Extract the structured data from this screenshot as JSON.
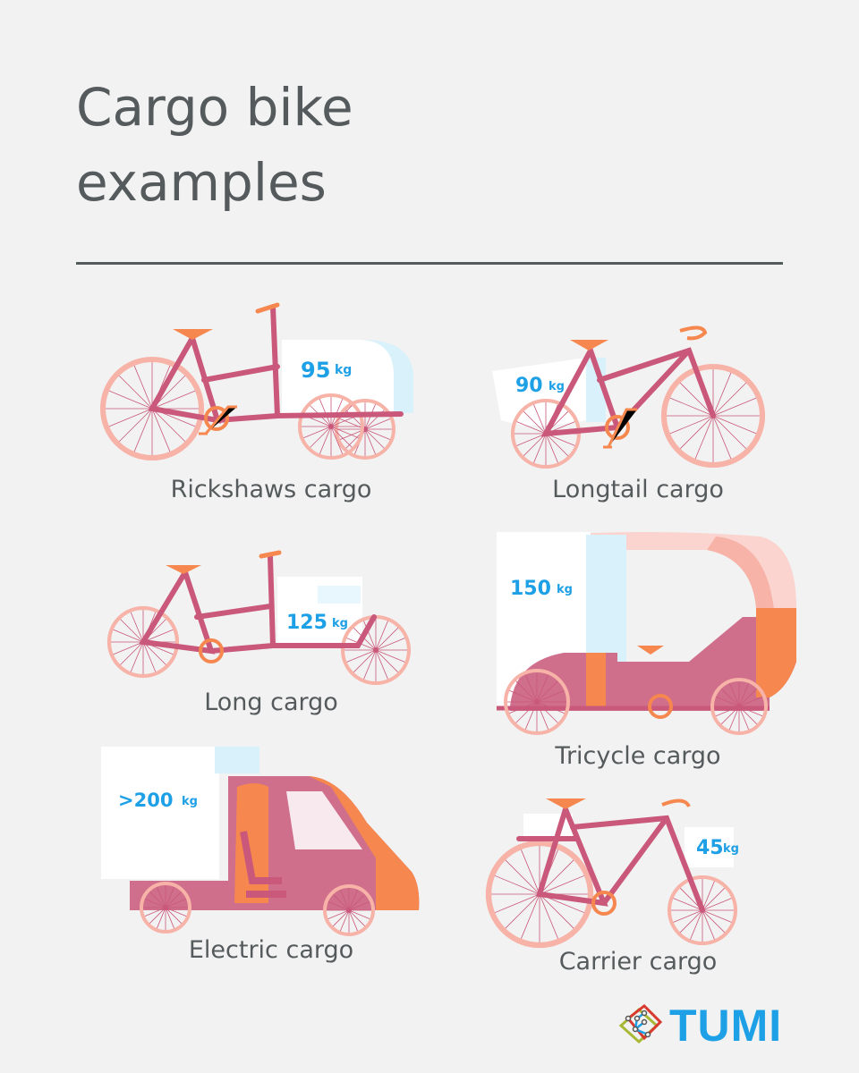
{
  "title": {
    "line1": "Cargo bike",
    "line2": "examples"
  },
  "colors": {
    "frame": "#c9587a",
    "wheel": "#f7b3a8",
    "accent": "#f5874f",
    "weight": "#1ea0e6",
    "text": "#555a5c",
    "cargo_shade": "#d9f1fb"
  },
  "bikes": [
    {
      "name": "Rickshaws cargo",
      "weight": "95",
      "unit": "kg"
    },
    {
      "name": "Longtail cargo",
      "weight": "90",
      "unit": "kg"
    },
    {
      "name": "Long cargo",
      "weight": "125",
      "unit": "kg"
    },
    {
      "name": "Tricycle cargo",
      "weight": "150",
      "unit": "kg"
    },
    {
      "name": "Electric cargo",
      "weight": ">200",
      "unit": "kg"
    },
    {
      "name": "Carrier cargo",
      "weight": "45",
      "unit": "kg"
    }
  ],
  "logo": {
    "text": "TUMI",
    "icon": "tumi-network-diamond-icon"
  }
}
